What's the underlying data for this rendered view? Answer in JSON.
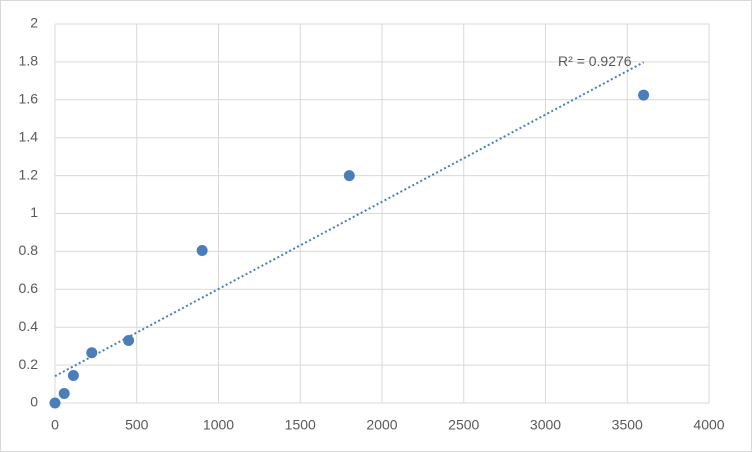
{
  "chart_data": {
    "type": "scatter",
    "x": [
      0,
      56.25,
      112.5,
      225,
      450,
      900,
      1800,
      3600
    ],
    "values": [
      0,
      0.05,
      0.145,
      0.265,
      0.33,
      0.805,
      1.2,
      1.625
    ],
    "color": "#4a7ebb",
    "xlim": [
      0,
      4000
    ],
    "xticks": [
      0,
      500,
      1000,
      1500,
      2000,
      2500,
      3000,
      3500,
      4000
    ],
    "ylim": [
      0,
      2
    ],
    "yticks": [
      0,
      0.2,
      0.4,
      0.6,
      0.8,
      1,
      1.2,
      1.4,
      1.6,
      1.8,
      2
    ],
    "grid": true,
    "trendline": {
      "type": "linear",
      "label": "R² = 0.9276"
    }
  }
}
